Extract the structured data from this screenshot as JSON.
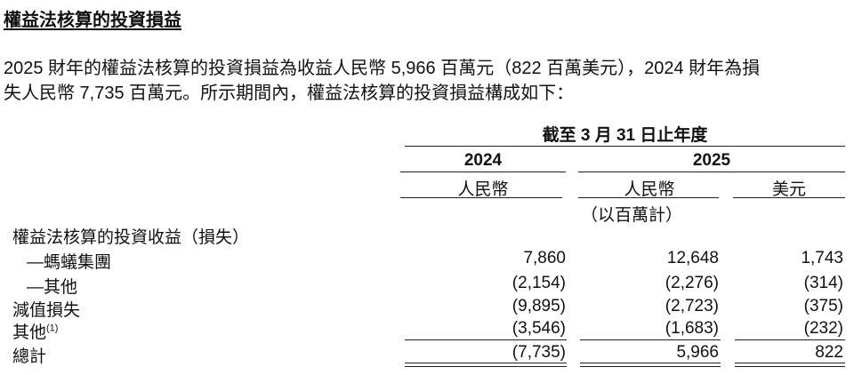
{
  "title": "權益法核算的投資損益",
  "paragraph": [
    "2025 財年的權益法核算的投資損益為收益人民幣 5,966 百萬元（822 百萬美元），2024 財年為損",
    "失人民幣 7,735 百萬元。所示期間內，權益法核算的投資損益構成如下："
  ],
  "table": {
    "period_header": "截至 3 月 31 日止年度",
    "years": [
      "2024",
      "2025"
    ],
    "currencies": [
      "人民幣",
      "人民幣",
      "美元"
    ],
    "unit_note": "（以百萬計）",
    "rows": [
      {
        "label": "權益法核算的投資收益（損失）",
        "values": [
          "",
          "",
          ""
        ]
      },
      {
        "label": "—螞蟻集團",
        "values": [
          "7,860",
          "12,648",
          "1,743"
        ]
      },
      {
        "label": "—其他",
        "values": [
          "(2,154)",
          "(2,276)",
          "(314)"
        ]
      },
      {
        "label": "減值損失",
        "values": [
          "(9,895)",
          "(2,723)",
          "(375)"
        ]
      },
      {
        "label": "其他",
        "footnote": "(1)",
        "values": [
          "(3,546)",
          "(1,683)",
          "(232)"
        ]
      },
      {
        "label": "總計",
        "values": [
          "(7,735)",
          "5,966",
          "822"
        ]
      }
    ]
  }
}
